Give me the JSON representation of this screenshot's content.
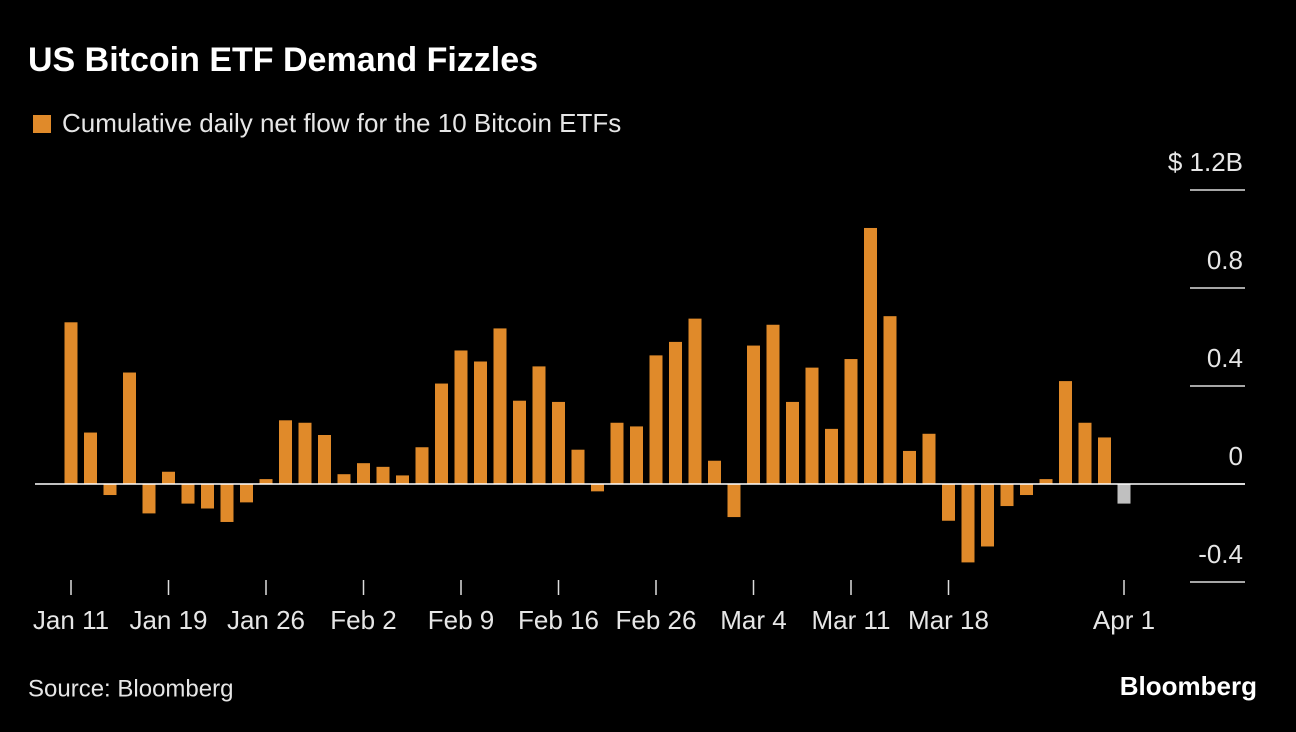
{
  "chart_data": {
    "type": "bar",
    "title": "US Bitcoin ETF Demand Fizzles",
    "source": "Source: Bloomberg",
    "brand": "Bloomberg",
    "categories": [
      "Jan 11",
      null,
      null,
      null,
      null,
      "Jan 19",
      null,
      null,
      null,
      null,
      "Jan 26",
      null,
      null,
      null,
      null,
      "Feb 2",
      null,
      null,
      null,
      null,
      "Feb 9",
      null,
      null,
      null,
      null,
      "Feb 16",
      null,
      null,
      null,
      null,
      "Feb 26",
      null,
      null,
      null,
      null,
      "Mar 4",
      null,
      null,
      null,
      null,
      "Mar 11",
      null,
      null,
      null,
      null,
      "Mar 18",
      null,
      null,
      null,
      null,
      null,
      null,
      null,
      null,
      "Apr 1"
    ],
    "series": [
      {
        "name": "Cumulative daily net flow for the 10 Bitcoin ETFs",
        "color": "#e08a2a",
        "values": [
          0.66,
          0.21,
          -0.045,
          0.455,
          -0.12,
          0.05,
          -0.08,
          -0.1,
          -0.155,
          -0.075,
          0.02,
          0.26,
          0.25,
          0.2,
          0.04,
          0.085,
          0.07,
          0.035,
          0.15,
          0.41,
          0.545,
          0.5,
          0.635,
          0.34,
          0.48,
          0.335,
          0.14,
          -0.03,
          0.25,
          0.235,
          0.525,
          0.58,
          0.675,
          0.095,
          -0.135,
          0.565,
          0.65,
          0.335,
          0.475,
          0.225,
          0.51,
          1.045,
          0.685,
          0.135,
          0.205,
          -0.15,
          -0.32,
          -0.255,
          -0.09,
          -0.045,
          0.02,
          0.42,
          0.25,
          0.19,
          -0.08
        ],
        "colors": [
          "#e08a2a",
          "#e08a2a",
          "#e08a2a",
          "#e08a2a",
          "#e08a2a",
          "#e08a2a",
          "#e08a2a",
          "#e08a2a",
          "#e08a2a",
          "#e08a2a",
          "#e08a2a",
          "#e08a2a",
          "#e08a2a",
          "#e08a2a",
          "#e08a2a",
          "#e08a2a",
          "#e08a2a",
          "#e08a2a",
          "#e08a2a",
          "#e08a2a",
          "#e08a2a",
          "#e08a2a",
          "#e08a2a",
          "#e08a2a",
          "#e08a2a",
          "#e08a2a",
          "#e08a2a",
          "#e08a2a",
          "#e08a2a",
          "#e08a2a",
          "#e08a2a",
          "#e08a2a",
          "#e08a2a",
          "#e08a2a",
          "#e08a2a",
          "#e08a2a",
          "#e08a2a",
          "#e08a2a",
          "#e08a2a",
          "#e08a2a",
          "#e08a2a",
          "#e08a2a",
          "#e08a2a",
          "#e08a2a",
          "#e08a2a",
          "#e08a2a",
          "#e08a2a",
          "#e08a2a",
          "#e08a2a",
          "#e08a2a",
          "#e08a2a",
          "#e08a2a",
          "#e08a2a",
          "#e08a2a",
          "#c0c0c0"
        ]
      }
    ],
    "ylim": [
      -0.4,
      1.2
    ],
    "yticks": [
      -0.4,
      0,
      0.4,
      0.8,
      {
        "value": 1.2,
        "label": "$ 1.2B"
      }
    ],
    "grid": true
  }
}
